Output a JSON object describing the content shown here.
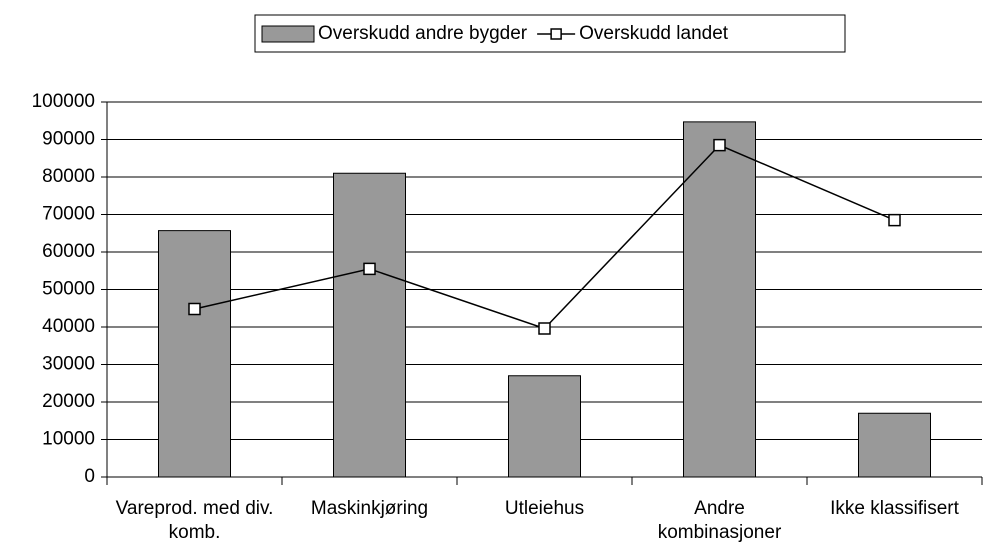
{
  "chart_data": {
    "type": "bar",
    "categories": [
      "Vareprod. med div. komb.",
      "Maskinkjøring",
      "Utleiehus",
      "Andre kombinasjoner",
      "Ikke klassifisert"
    ],
    "series": [
      {
        "name": "Overskudd andre bygder",
        "type": "bar",
        "color": "#999999",
        "values": [
          65700,
          81000,
          27000,
          94700,
          17000
        ]
      },
      {
        "name": "Overskudd landet",
        "type": "line",
        "color": "#000000",
        "values": [
          44800,
          55500,
          39600,
          88500,
          68500
        ]
      }
    ],
    "ylim": [
      0,
      100000
    ],
    "yticks": [
      0,
      10000,
      20000,
      30000,
      40000,
      50000,
      60000,
      70000,
      80000,
      90000,
      100000
    ],
    "grid": true,
    "legend": "top"
  }
}
